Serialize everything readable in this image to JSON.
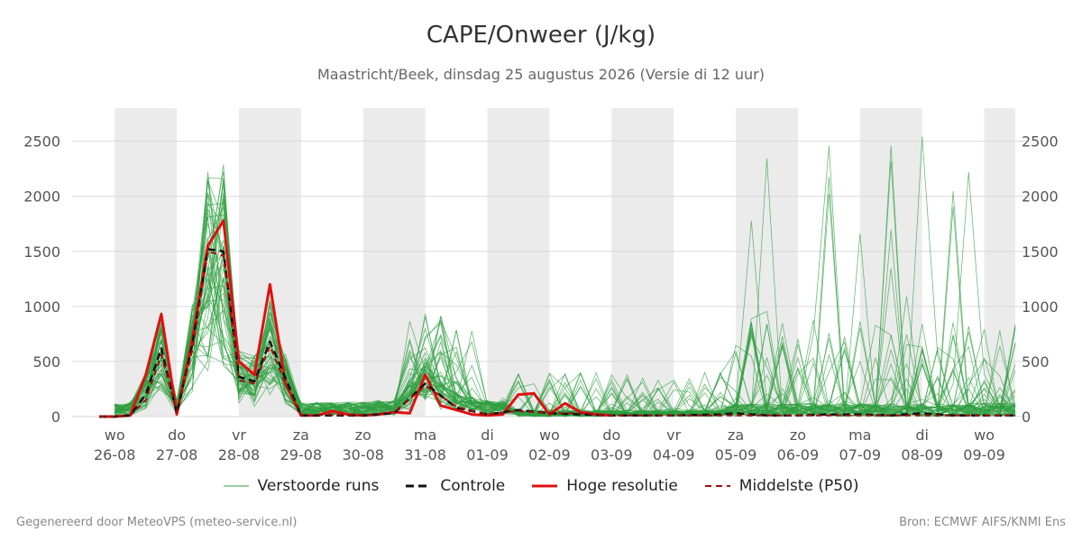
{
  "header": {
    "title": "CAPE/Onweer (J/kg)",
    "subtitle": "Maastricht/Beek, dinsdag 25 augustus 2026 (Versie di 12 uur)"
  },
  "footer": {
    "left": "Gegenereerd door MeteoVPS (meteo-service.nl)",
    "right": "Bron: ECMWF AIFS/KNMI Ens"
  },
  "legend": {
    "perturbed": "Verstoorde runs",
    "control": "Controle",
    "highres": "Hoge resolutie",
    "median": "Middelste (P50)"
  },
  "colors": {
    "perturbed": "#2e9e3e",
    "control": "#111111",
    "highres": "#e01010",
    "median": "#a01010",
    "weekend_band": "#ebebeb",
    "grid": "#d9d9d9"
  },
  "chart_data": {
    "type": "line",
    "title": "CAPE/Onweer (J/kg)",
    "ylabel": "",
    "ylim": [
      0,
      2800
    ],
    "yticks": [
      0,
      500,
      1000,
      1500,
      2000,
      2500
    ],
    "x_unit": "day index (0 = 26-08 00h, step 0.5 day)",
    "xlim": [
      -0.25,
      14.5
    ],
    "grid": true,
    "dual_y_axis": true,
    "legend_position": "bottom",
    "day_ticks": [
      {
        "x": 0,
        "weekday": "wo",
        "date": "26-08"
      },
      {
        "x": 1,
        "weekday": "do",
        "date": "27-08"
      },
      {
        "x": 2,
        "weekday": "vr",
        "date": "28-08"
      },
      {
        "x": 3,
        "weekday": "za",
        "date": "29-08"
      },
      {
        "x": 4,
        "weekday": "zo",
        "date": "30-08"
      },
      {
        "x": 5,
        "weekday": "ma",
        "date": "31-08"
      },
      {
        "x": 6,
        "weekday": "di",
        "date": "01-09"
      },
      {
        "x": 7,
        "weekday": "wo",
        "date": "02-09"
      },
      {
        "x": 8,
        "weekday": "do",
        "date": "03-09"
      },
      {
        "x": 9,
        "weekday": "vr",
        "date": "04-09"
      },
      {
        "x": 10,
        "weekday": "za",
        "date": "05-09"
      },
      {
        "x": 11,
        "weekday": "zo",
        "date": "06-09"
      },
      {
        "x": 12,
        "weekday": "ma",
        "date": "07-09"
      },
      {
        "x": 13,
        "weekday": "di",
        "date": "08-09"
      },
      {
        "x": 14,
        "weekday": "wo",
        "date": "09-09"
      }
    ],
    "shaded_bands": [
      [
        0,
        1
      ],
      [
        2,
        3
      ],
      [
        4,
        5
      ],
      [
        6,
        7
      ],
      [
        8,
        9
      ],
      [
        10,
        11
      ],
      [
        12,
        13
      ],
      [
        14,
        14.5
      ]
    ],
    "series": [
      {
        "name": "Hoge resolutie",
        "style": "solid",
        "role": "highres",
        "x": [
          -0.25,
          0,
          0.25,
          0.5,
          0.75,
          1,
          1.25,
          1.5,
          1.75,
          2,
          2.25,
          2.5,
          2.75,
          3,
          3.25,
          3.5,
          3.75,
          4,
          4.25,
          4.5,
          4.75,
          5,
          5.25,
          5.5,
          5.75,
          6
        ],
        "y": [
          0,
          0,
          10,
          380,
          930,
          20,
          700,
          1550,
          1780,
          500,
          380,
          1200,
          300,
          10,
          10,
          50,
          20,
          10,
          20,
          40,
          30,
          380,
          100,
          60,
          20,
          10
        ]
      },
      {
        "name": "Hoge resolutie",
        "style": "solid",
        "role": "highres",
        "x": [
          6,
          6.25,
          6.5,
          6.75,
          7,
          7.25,
          7.5,
          7.75,
          8
        ],
        "y": [
          10,
          20,
          200,
          210,
          20,
          120,
          40,
          20,
          10
        ]
      },
      {
        "name": "Controle",
        "style": "dashed",
        "role": "control",
        "x": [
          -0.25,
          0,
          0.25,
          0.5,
          0.75,
          1,
          1.25,
          1.5,
          1.75,
          2,
          2.25,
          2.5,
          2.75,
          3,
          3.5,
          4,
          4.5,
          5,
          5.5,
          6,
          6.5,
          7,
          7.5,
          8,
          9,
          9.75,
          10,
          10.5,
          11,
          11.5,
          12,
          12.5,
          13,
          13.5,
          14,
          14.5
        ],
        "y": [
          0,
          0,
          10,
          200,
          620,
          30,
          650,
          1520,
          1500,
          360,
          320,
          680,
          350,
          10,
          10,
          10,
          30,
          300,
          80,
          20,
          60,
          30,
          20,
          10,
          10,
          20,
          30,
          10,
          10,
          20,
          20,
          10,
          30,
          10,
          10,
          10
        ]
      },
      {
        "name": "Middelste (P50)",
        "style": "dashed",
        "role": "median",
        "x": [
          -0.25,
          0,
          0.25,
          0.5,
          0.75,
          1,
          1.25,
          1.5,
          1.75,
          2,
          2.25,
          2.5,
          2.75,
          3,
          3.5,
          4,
          4.5,
          5,
          5.5,
          6,
          6.5,
          7,
          7.5,
          8,
          9,
          10,
          11,
          12,
          13,
          14,
          14.5
        ],
        "y": [
          0,
          0,
          10,
          150,
          560,
          40,
          600,
          1500,
          1460,
          330,
          300,
          640,
          300,
          10,
          20,
          10,
          40,
          280,
          90,
          20,
          50,
          30,
          30,
          10,
          10,
          10,
          10,
          10,
          10,
          10,
          10
        ]
      }
    ]
  }
}
